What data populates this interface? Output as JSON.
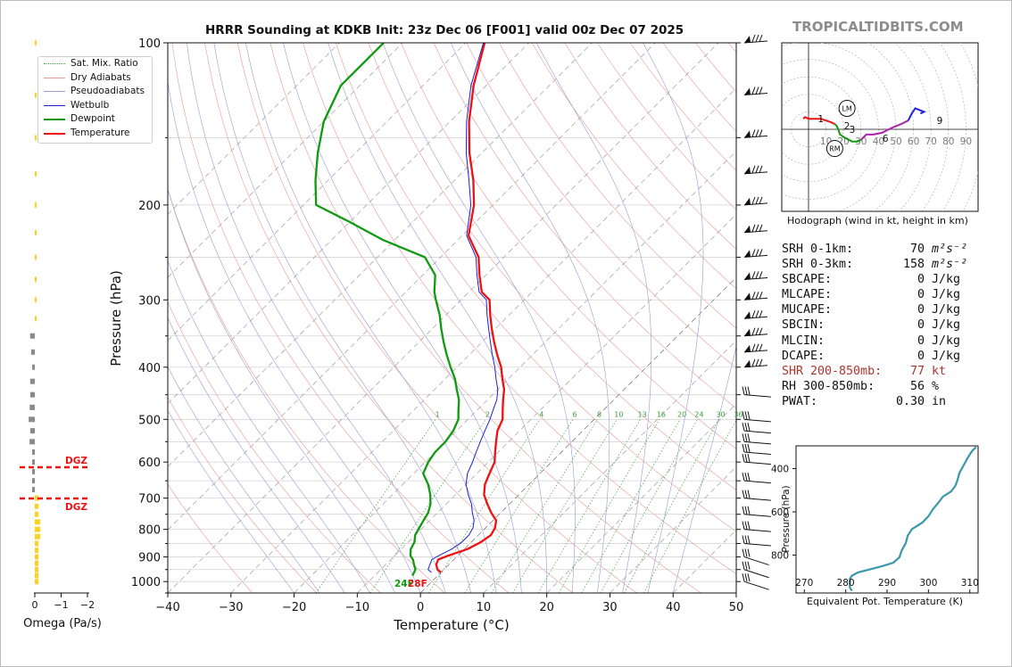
{
  "site": "TROPICALTIDBITS.COM",
  "title": "HRRR Sounding at KDKB Init: 23z Dec 06 [F001] valid 00z Dec 07 2025",
  "legend": [
    {
      "label": "Sat. Mix. Ratio",
      "color": "#3fa03f",
      "style": "dotted"
    },
    {
      "label": "Dry Adiabats",
      "color": "#e29a9a",
      "style": "solid"
    },
    {
      "label": "Pseudoadiabats",
      "color": "#9a9ad8",
      "style": "solid"
    },
    {
      "label": "Wetbulb",
      "color": "#1f1fd6",
      "style": "solid"
    },
    {
      "label": "Dewpoint",
      "color": "#109a10",
      "style": "solid"
    },
    {
      "label": "Temperature",
      "color": "#ee1111",
      "style": "solid"
    }
  ],
  "skewt": {
    "xlabel": "Temperature (°C)",
    "ylabel": "Pressure (hPa)",
    "x_ticks": [
      "−40",
      "−30",
      "−20",
      "−10",
      "0",
      "10",
      "20",
      "30",
      "40",
      "50"
    ],
    "y_ticks": [
      "100",
      "200",
      "300",
      "400",
      "500",
      "600",
      "700",
      "800",
      "900",
      "1000"
    ],
    "mix_ratio_labels": [
      "1",
      "2",
      "4",
      "6",
      "8",
      "10",
      "13",
      "16",
      "20",
      "24",
      "30",
      "36"
    ],
    "surface_dewpoint_label": "24F",
    "surface_temperature_label": "28F"
  },
  "omega": {
    "xlabel": "Omega (Pa/s)",
    "x_ticks": [
      "0",
      "−1",
      "−2"
    ],
    "dgz_label": "DGZ"
  },
  "hodograph": {
    "caption": "Hodograph (wind in kt, height in km)",
    "ring_labels": [
      "10",
      "20",
      "30",
      "40",
      "50",
      "60",
      "70",
      "80",
      "90"
    ],
    "height_labels": [
      "1",
      "2",
      "3",
      "6",
      "9"
    ],
    "markers": [
      "LM",
      "RM"
    ]
  },
  "indices": [
    {
      "label": "SRH 0-1km:",
      "value": "70",
      "unit": "m²s⁻²"
    },
    {
      "label": "SRH 0-3km:",
      "value": "158",
      "unit": "m²s⁻²"
    },
    {
      "label": "SBCAPE:",
      "value": "0",
      "unit": "J/kg"
    },
    {
      "label": "MLCAPE:",
      "value": "0",
      "unit": "J/kg"
    },
    {
      "label": "MUCAPE:",
      "value": "0",
      "unit": "J/kg"
    },
    {
      "label": "SBCIN:",
      "value": "0",
      "unit": "J/kg"
    },
    {
      "label": "MLCIN:",
      "value": "0",
      "unit": "J/kg"
    },
    {
      "label": "DCAPE:",
      "value": "0",
      "unit": "J/kg"
    },
    {
      "label": "SHR 200-850mb:",
      "value": "77",
      "unit": "kt"
    },
    {
      "label": "RH 300-850mb:",
      "value": "56",
      "unit": "%"
    },
    {
      "label": "PWAT:",
      "value": "0.30",
      "unit": "in"
    }
  ],
  "ept": {
    "xlabel": "Equivalent Pot. Temperature (K)",
    "ylabel": "Pressure (hPa)",
    "x_ticks": [
      "270",
      "280",
      "290",
      "300",
      "310"
    ],
    "y_ticks": [
      "400",
      "600",
      "800"
    ]
  },
  "chart_data": [
    {
      "type": "line",
      "title": "HRRR Sounding at KDKB Init: 23z Dec 06 [F001] valid 00z Dec 07 2025",
      "xlabel": "Temperature (°C)",
      "ylabel": "Pressure (hPa)",
      "xlim": [
        -40,
        50
      ],
      "ylim": [
        1050,
        100
      ],
      "y_scale": "log",
      "skew": "skew-T",
      "legend_position": "top-left",
      "series": [
        {
          "name": "Temperature",
          "color": "#ee1111",
          "points": [
            [
              0,
              962
            ],
            [
              -1,
              950
            ],
            [
              -2,
              930
            ],
            [
              -2.5,
              910
            ],
            [
              -1.5,
              895
            ],
            [
              0.5,
              870
            ],
            [
              1.5,
              845
            ],
            [
              2,
              820
            ],
            [
              1.5,
              795
            ],
            [
              0.5,
              770
            ],
            [
              -1.5,
              745
            ],
            [
              -3.5,
              718
            ],
            [
              -5.5,
              690
            ],
            [
              -7,
              660
            ],
            [
              -8,
              630
            ],
            [
              -9,
              600
            ],
            [
              -10.5,
              575
            ],
            [
              -12,
              550
            ],
            [
              -13.5,
              525
            ],
            [
              -14.5,
              500
            ],
            [
              -16,
              480
            ],
            [
              -17.5,
              460
            ],
            [
              -19,
              440
            ],
            [
              -21,
              420
            ],
            [
              -23,
              400
            ],
            [
              -25.5,
              380
            ],
            [
              -28,
              360
            ],
            [
              -30.5,
              340
            ],
            [
              -33,
              320
            ],
            [
              -35.5,
              300
            ],
            [
              -38,
              290
            ],
            [
              -41,
              270
            ],
            [
              -44,
              250
            ],
            [
              -49,
              228
            ],
            [
              -53,
              200
            ],
            [
              -57,
              180
            ],
            [
              -62,
              160
            ],
            [
              -67,
              140
            ],
            [
              -72,
              120
            ],
            [
              -77,
              100
            ]
          ]
        },
        {
          "name": "Wetbulb",
          "color": "#1f1fd6",
          "points": [
            [
              -1.5,
              962
            ],
            [
              -2.5,
              950
            ],
            [
              -3,
              930
            ],
            [
              -3.5,
              910
            ],
            [
              -3,
              895
            ],
            [
              -2,
              870
            ],
            [
              -1.5,
              845
            ],
            [
              -1.5,
              820
            ],
            [
              -2,
              795
            ],
            [
              -3,
              770
            ],
            [
              -4.5,
              745
            ],
            [
              -6,
              718
            ],
            [
              -8,
              690
            ],
            [
              -10,
              660
            ],
            [
              -11.5,
              630
            ],
            [
              -12.5,
              600
            ],
            [
              -13.5,
              575
            ],
            [
              -14.5,
              550
            ],
            [
              -15.5,
              525
            ],
            [
              -16.5,
              500
            ],
            [
              -17.5,
              480
            ],
            [
              -18.5,
              460
            ],
            [
              -20,
              440
            ],
            [
              -22,
              420
            ],
            [
              -24,
              400
            ],
            [
              -26.3,
              380
            ],
            [
              -28.6,
              360
            ],
            [
              -31,
              340
            ],
            [
              -33.5,
              320
            ],
            [
              -36,
              300
            ],
            [
              -38.4,
              290
            ],
            [
              -41.4,
              270
            ],
            [
              -44.4,
              250
            ],
            [
              -49.3,
              228
            ],
            [
              -53.5,
              200
            ],
            [
              -57.7,
              180
            ],
            [
              -62.5,
              160
            ],
            [
              -67.4,
              140
            ],
            [
              -72.4,
              120
            ],
            [
              -77.2,
              100
            ]
          ]
        },
        {
          "name": "Dewpoint",
          "color": "#109a10",
          "points": [
            [
              -4,
              975
            ],
            [
              -4.5,
              950
            ],
            [
              -5.5,
              930
            ],
            [
              -6.5,
              910
            ],
            [
              -7.5,
              895
            ],
            [
              -8.5,
              870
            ],
            [
              -9,
              845
            ],
            [
              -10,
              820
            ],
            [
              -10.5,
              795
            ],
            [
              -11,
              770
            ],
            [
              -11.5,
              745
            ],
            [
              -12.5,
              718
            ],
            [
              -14,
              690
            ],
            [
              -16,
              660
            ],
            [
              -18.5,
              630
            ],
            [
              -19.5,
              600
            ],
            [
              -20,
              575
            ],
            [
              -20,
              550
            ],
            [
              -20.5,
              525
            ],
            [
              -21.5,
              500
            ],
            [
              -23,
              480
            ],
            [
              -24.5,
              460
            ],
            [
              -26.5,
              440
            ],
            [
              -28.5,
              420
            ],
            [
              -31,
              400
            ],
            [
              -33.5,
              380
            ],
            [
              -36,
              360
            ],
            [
              -38.5,
              340
            ],
            [
              -41,
              320
            ],
            [
              -44,
              300
            ],
            [
              -45.5,
              290
            ],
            [
              -48,
              270
            ],
            [
              -52.5,
              250
            ],
            [
              -62,
              232
            ],
            [
              -70,
              215
            ],
            [
              -78,
              200
            ],
            [
              -82,
              180
            ],
            [
              -86,
              160
            ],
            [
              -90,
              140
            ],
            [
              -93,
              120
            ],
            [
              -93,
              100
            ]
          ]
        }
      ]
    },
    {
      "type": "line",
      "title": "",
      "xlabel": "Equivalent Pot. Temperature (K)",
      "ylabel": "Pressure (hPa)",
      "xlim": [
        268,
        312
      ],
      "ylim": [
        975,
        295
      ],
      "series": [
        {
          "name": "",
          "color": "#3a98a8",
          "points": [
            [
              281.5,
              965
            ],
            [
              281,
              950
            ],
            [
              281,
              930
            ],
            [
              281,
              910
            ],
            [
              281.5,
              895
            ],
            [
              283,
              880
            ],
            [
              286,
              865
            ],
            [
              289,
              850
            ],
            [
              291.5,
              835
            ],
            [
              293,
              810
            ],
            [
              293.5,
              780
            ],
            [
              294.5,
              745
            ],
            [
              295,
              710
            ],
            [
              296,
              680
            ],
            [
              298.5,
              650
            ],
            [
              300,
              620
            ],
            [
              301,
              590
            ],
            [
              302.5,
              555
            ],
            [
              303.5,
              530
            ],
            [
              305.5,
              505
            ],
            [
              306.5,
              480
            ],
            [
              307,
              455
            ],
            [
              307.5,
              420
            ],
            [
              308.5,
              385
            ],
            [
              309.5,
              350
            ],
            [
              310.5,
              320
            ],
            [
              311.5,
              300
            ]
          ]
        }
      ]
    },
    {
      "type": "line",
      "title": "",
      "xlabel": "",
      "ylabel": "",
      "series": [
        {
          "name": "",
          "color": "#ee1111",
          "points": [
            [
              -3,
              6
            ],
            [
              -2,
              7
            ],
            [
              0,
              6
            ],
            [
              3,
              6
            ],
            [
              7,
              6
            ],
            [
              10,
              5
            ],
            [
              13,
              4
            ],
            [
              15,
              3
            ]
          ]
        },
        {
          "name": "",
          "color": "#109a10",
          "points": [
            [
              15,
              3
            ],
            [
              16,
              2
            ],
            [
              17,
              0
            ],
            [
              18,
              -3
            ],
            [
              21,
              -5
            ],
            [
              25,
              -7
            ],
            [
              28,
              -7
            ],
            [
              30,
              -6
            ]
          ]
        },
        {
          "name": "",
          "color": "#aa22aa",
          "points": [
            [
              30,
              -6
            ],
            [
              33,
              -3
            ],
            [
              37,
              -3
            ],
            [
              42,
              -2
            ],
            [
              48,
              1
            ],
            [
              53,
              3
            ],
            [
              57,
              5
            ]
          ]
        },
        {
          "name": "",
          "color": "#2222dd",
          "points": [
            [
              57,
              5
            ],
            [
              59,
              9
            ],
            [
              61,
              12
            ],
            [
              66,
              10
            ],
            [
              64,
              9
            ]
          ]
        }
      ]
    }
  ]
}
